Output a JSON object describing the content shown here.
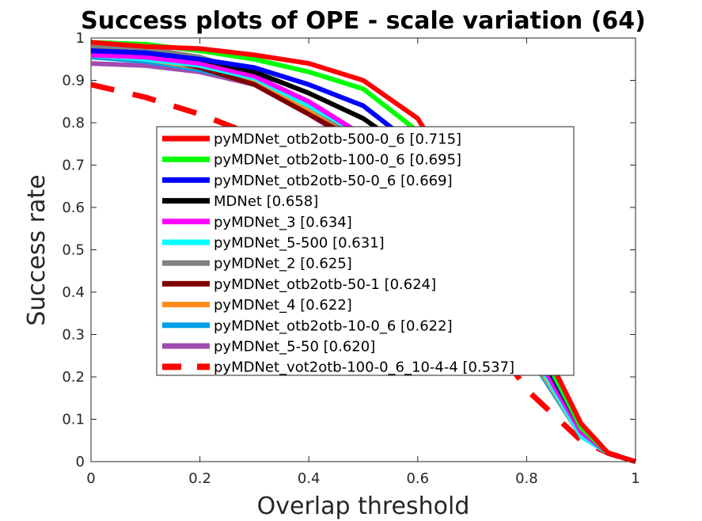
{
  "chart_data": {
    "type": "line",
    "title": "Success plots of OPE - scale variation (64)",
    "xlabel": "Overlap threshold",
    "ylabel": "Success rate",
    "xlim": [
      0,
      1
    ],
    "ylim": [
      0,
      1
    ],
    "xticks": [
      "0",
      "0.2",
      "0.4",
      "0.6",
      "0.8",
      "1"
    ],
    "yticks": [
      "0",
      "0.1",
      "0.2",
      "0.3",
      "0.4",
      "0.5",
      "0.6",
      "0.7",
      "0.8",
      "0.9",
      "1"
    ],
    "grid": false,
    "legend_position": "center",
    "x": [
      0,
      0.1,
      0.2,
      0.3,
      0.4,
      0.5,
      0.6,
      0.7,
      0.8,
      0.9,
      0.95,
      1
    ],
    "series": [
      {
        "name": "pyMDNet_otb2otb-500-0_6 [0.715]",
        "color": "#ff0000",
        "dashed": false,
        "values": [
          0.99,
          0.98,
          0.975,
          0.96,
          0.94,
          0.9,
          0.81,
          0.6,
          0.35,
          0.09,
          0.02,
          0.0
        ]
      },
      {
        "name": "pyMDNet_otb2otb-100-0_6 [0.695]",
        "color": "#00ff00",
        "dashed": false,
        "values": [
          0.99,
          0.985,
          0.97,
          0.95,
          0.92,
          0.88,
          0.78,
          0.58,
          0.33,
          0.08,
          0.02,
          0.0
        ]
      },
      {
        "name": "pyMDNet_otb2otb-50-0_6 [0.669]",
        "color": "#0000ff",
        "dashed": false,
        "values": [
          0.97,
          0.965,
          0.95,
          0.93,
          0.89,
          0.84,
          0.74,
          0.56,
          0.32,
          0.08,
          0.02,
          0.0
        ]
      },
      {
        "name": "MDNet [0.658]",
        "color": "#000000",
        "dashed": false,
        "values": [
          0.97,
          0.965,
          0.95,
          0.92,
          0.87,
          0.81,
          0.72,
          0.55,
          0.31,
          0.08,
          0.02,
          0.0
        ]
      },
      {
        "name": "pyMDNet_3 [0.634]",
        "color": "#ff00ff",
        "dashed": false,
        "values": [
          0.96,
          0.955,
          0.94,
          0.91,
          0.85,
          0.77,
          0.68,
          0.52,
          0.29,
          0.07,
          0.02,
          0.0
        ]
      },
      {
        "name": "pyMDNet_5-500 [0.631]",
        "color": "#00ffff",
        "dashed": false,
        "values": [
          0.96,
          0.95,
          0.935,
          0.905,
          0.84,
          0.77,
          0.67,
          0.51,
          0.28,
          0.06,
          0.02,
          0.0
        ]
      },
      {
        "name": "pyMDNet_2 [0.625]",
        "color": "#808080",
        "dashed": false,
        "values": [
          0.98,
          0.975,
          0.955,
          0.915,
          0.84,
          0.76,
          0.66,
          0.5,
          0.28,
          0.07,
          0.02,
          0.0
        ]
      },
      {
        "name": "pyMDNet_otb2otb-50-1 [0.624]",
        "color": "#800000",
        "dashed": false,
        "values": [
          0.97,
          0.96,
          0.93,
          0.89,
          0.82,
          0.75,
          0.66,
          0.5,
          0.28,
          0.07,
          0.02,
          0.0
        ]
      },
      {
        "name": "pyMDNet_4 [0.622]",
        "color": "#ff8c1a",
        "dashed": false,
        "values": [
          0.96,
          0.95,
          0.93,
          0.895,
          0.83,
          0.75,
          0.66,
          0.5,
          0.27,
          0.06,
          0.02,
          0.0
        ]
      },
      {
        "name": "pyMDNet_otb2otb-10-0_6 [0.622]",
        "color": "#00a0e6",
        "dashed": false,
        "values": [
          0.955,
          0.945,
          0.925,
          0.895,
          0.83,
          0.75,
          0.66,
          0.5,
          0.26,
          0.06,
          0.02,
          0.0
        ]
      },
      {
        "name": "pyMDNet_5-50 [0.620]",
        "color": "#a04cb0",
        "dashed": false,
        "values": [
          0.94,
          0.935,
          0.92,
          0.89,
          0.82,
          0.74,
          0.65,
          0.5,
          0.27,
          0.06,
          0.02,
          0.0
        ]
      },
      {
        "name": "pyMDNet_vot2otb-100-0_6_10-4-4 [0.537]",
        "color": "#ff0000",
        "dashed": true,
        "values": [
          0.89,
          0.86,
          0.82,
          0.77,
          0.7,
          0.61,
          0.5,
          0.36,
          0.17,
          0.05,
          0.02,
          0.0
        ]
      }
    ]
  }
}
